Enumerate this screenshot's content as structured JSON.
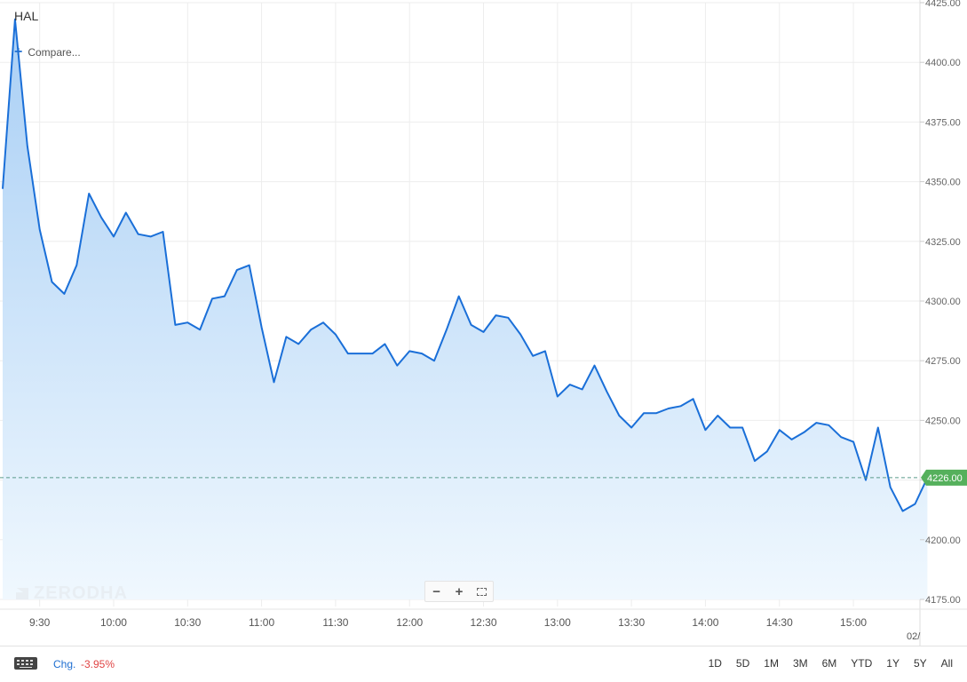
{
  "symbol": "HAL",
  "compare_label": "Compare...",
  "watermark": "ZERODHA",
  "zoom": {
    "minus": "−",
    "plus": "+"
  },
  "last_price_label": "4226.00",
  "next_day_label": "02/",
  "footer": {
    "chg_label": "Chg.",
    "chg_value": "-3.95%",
    "periods": [
      "1D",
      "5D",
      "1M",
      "3M",
      "6M",
      "YTD",
      "1Y",
      "5Y",
      "All"
    ]
  },
  "colors": {
    "line": "#1a6fd8",
    "area_top": "#a9cff5",
    "area_bottom": "#f0f8fe",
    "price_tag": "#55b05c",
    "negative": "#e04444",
    "accent": "#1f6fd1"
  },
  "chart_data": {
    "type": "area",
    "title": "HAL",
    "xlabel": "",
    "ylabel": "",
    "ylim": [
      4175,
      4425
    ],
    "yticks": [
      "4425.00",
      "4400.00",
      "4375.00",
      "4350.00",
      "4325.00",
      "4300.00",
      "4275.00",
      "4250.00",
      "4225.00",
      "4200.00",
      "4175.00"
    ],
    "xticks": [
      "9:30",
      "10:00",
      "10:30",
      "11:00",
      "11:30",
      "12:00",
      "12:30",
      "13:00",
      "13:30",
      "14:00",
      "14:30",
      "15:00"
    ],
    "x_start": "9:15",
    "interval_minutes": 5,
    "last_price": 4226.0,
    "series": [
      {
        "values": [
          4347,
          4418,
          4365,
          4330,
          4308,
          4303,
          4315,
          4345,
          4335,
          4327,
          4337,
          4328,
          4327,
          4329,
          4290,
          4291,
          4288,
          4301,
          4302,
          4313,
          4315,
          4289,
          4266,
          4285,
          4282,
          4288,
          4291,
          4286,
          4278,
          4278,
          4278,
          4282,
          4273,
          4279,
          4278,
          4275,
          4288,
          4302,
          4290,
          4287,
          4294,
          4293,
          4286,
          4277,
          4279,
          4260,
          4265,
          4263,
          4273,
          4262,
          4252,
          4247,
          4253,
          4253,
          4255,
          4256,
          4259,
          4246,
          4252,
          4247,
          4247,
          4233,
          4237,
          4246,
          4242,
          4245,
          4249,
          4248,
          4243,
          4241,
          4225,
          4247,
          4222,
          4212,
          4215,
          4226
        ]
      }
    ]
  }
}
